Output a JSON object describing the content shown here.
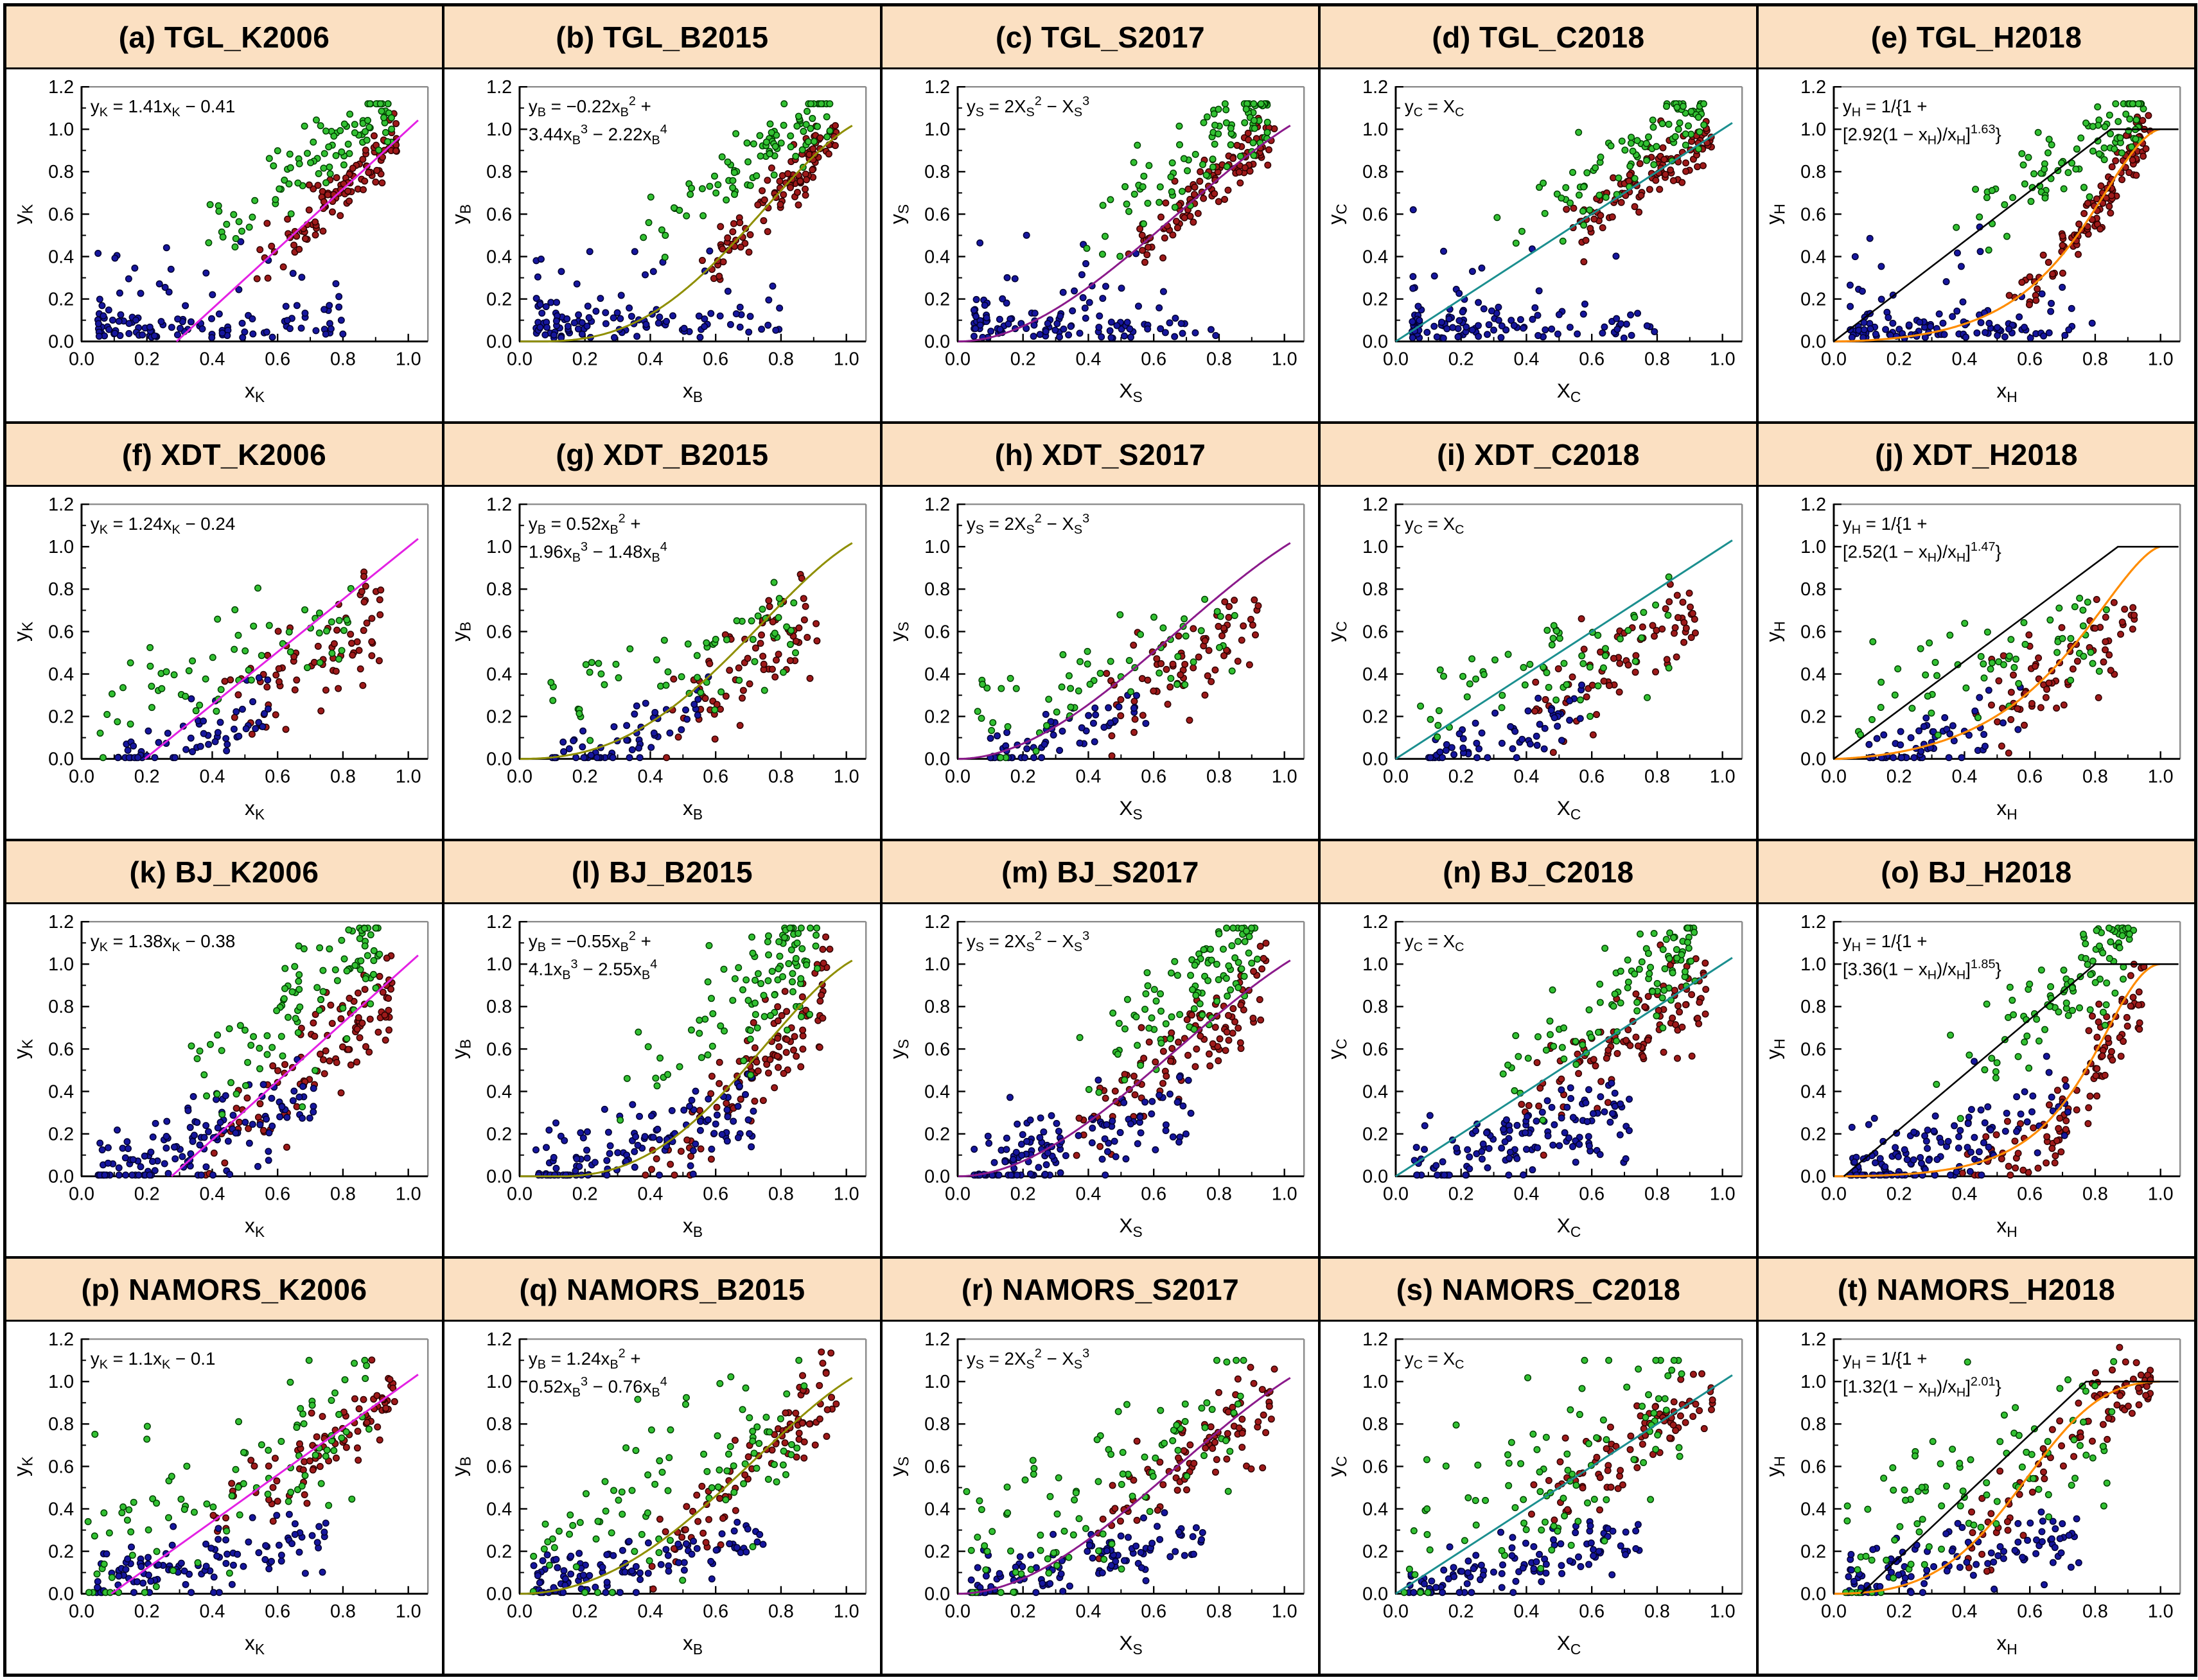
{
  "figure": {
    "header_bg": "#FBE0C2",
    "border_color": "#000000",
    "frame_gray": "#8C8C8C",
    "sites": [
      "TGL",
      "XDT",
      "BJ",
      "NAMORS"
    ],
    "models": [
      "K2006",
      "B2015",
      "S2017",
      "C2018",
      "H2018"
    ]
  },
  "chart_data": {
    "type": "scatter",
    "grid": {
      "rows": 4,
      "cols": 5
    },
    "axes": {
      "xlim": [
        0.0,
        1.0
      ],
      "ylim": [
        0.0,
        1.2
      ],
      "xticks": [
        0.0,
        0.2,
        0.4,
        0.6,
        0.8,
        1.0
      ],
      "yticks": [
        0.0,
        0.2,
        0.4,
        0.6,
        0.8,
        1.0,
        1.2
      ],
      "minor_step": 0.1,
      "grid_lines": false
    },
    "series_colors": {
      "blue": {
        "fill": "#16169E",
        "edge": "#000030"
      },
      "red": {
        "fill": "#9E1A1A",
        "edge": "#2E0000"
      },
      "green": {
        "fill": "#33C133",
        "edge": "#004000"
      }
    },
    "row_scatter": [
      {
        "site": "TGL",
        "series": [
          {
            "name": "red",
            "n": 110,
            "x": [
              0.52,
              0.97,
              0.65
            ],
            "y": {
              "mode": "curve",
              "a": 1.0,
              "b": 0.0,
              "noise": 0.065
            }
          },
          {
            "name": "blue",
            "n": 120,
            "x": [
              0.05,
              0.8,
              1.7
            ],
            "y": {
              "mode": "band",
              "a": 0.0,
              "b": 0.015,
              "noise": 0.075,
              "pout": 0.18,
              "outmax": 0.42
            }
          },
          {
            "name": "green",
            "n": 95,
            "x": [
              0.28,
              0.95,
              0.45
            ],
            "y": {
              "mode": "line",
              "a": 1.05,
              "b": 0.12,
              "noise": 0.1,
              "clampMax": 1.12
            }
          }
        ]
      },
      {
        "site": "XDT",
        "series": [
          {
            "name": "red",
            "n": 75,
            "x": [
              0.42,
              0.92,
              0.8
            ],
            "y": {
              "mode": "line",
              "a": 0.9,
              "b": -0.18,
              "noise": 0.11
            }
          },
          {
            "name": "blue",
            "n": 60,
            "x": [
              0.1,
              0.58,
              1.1
            ],
            "y": {
              "mode": "line",
              "a": 0.5,
              "b": -0.06,
              "noise": 0.07
            }
          },
          {
            "name": "green",
            "n": 60,
            "x": [
              0.05,
              0.85,
              0.9
            ],
            "y": {
              "mode": "line",
              "a": 0.55,
              "b": 0.18,
              "noise": 0.13,
              "clampMax": 1.05
            }
          }
        ]
      },
      {
        "site": "BJ",
        "series": [
          {
            "name": "red",
            "n": 110,
            "x": [
              0.35,
              0.95,
              0.6
            ],
            "y": {
              "mode": "curve",
              "a": 1.0,
              "b": -0.04,
              "noise": 0.11
            }
          },
          {
            "name": "blue",
            "n": 135,
            "x": [
              0.05,
              0.72,
              1.2
            ],
            "y": {
              "mode": "line",
              "a": 0.55,
              "b": -0.05,
              "noise": 0.1
            }
          },
          {
            "name": "green",
            "n": 100,
            "x": [
              0.28,
              0.92,
              0.5
            ],
            "y": {
              "mode": "line",
              "a": 1.15,
              "b": 0.05,
              "noise": 0.13,
              "clampMax": 1.17
            }
          }
        ]
      },
      {
        "site": "NAMORS",
        "series": [
          {
            "name": "red",
            "n": 90,
            "x": [
              0.4,
              0.97,
              0.75
            ],
            "y": {
              "mode": "curve",
              "a": 1.0,
              "b": -0.02,
              "noise": 0.1
            }
          },
          {
            "name": "blue",
            "n": 110,
            "x": [
              0.04,
              0.75,
              1.1
            ],
            "y": {
              "mode": "line",
              "a": 0.32,
              "b": 0.03,
              "noise": 0.07
            }
          },
          {
            "name": "green",
            "n": 95,
            "x": [
              0.02,
              0.88,
              0.95
            ],
            "y": {
              "mode": "line",
              "a": 0.85,
              "b": 0.12,
              "noise": 0.2,
              "clampMax": 1.1
            }
          }
        ]
      }
    ],
    "panels": [
      {
        "letter": "a",
        "title": "(a) TGL_K2006",
        "row": 0,
        "col": 0,
        "seed": 1,
        "xlabel": "x_{K}",
        "ylabel": "y_{K}",
        "eq": [
          "y_{K} = 1.41x_{K} − 0.41"
        ],
        "curves": [
          {
            "type": "linear",
            "a": 1.41,
            "b": -0.41,
            "color": "#E321E3",
            "w": 3
          }
        ]
      },
      {
        "letter": "b",
        "title": "(b) TGL_B2015",
        "row": 0,
        "col": 1,
        "seed": 2,
        "xlabel": "x_{B}",
        "ylabel": "y_{B}",
        "eq": [
          "y_{B} = −0.22x_{B}^{2} +",
          "3.44x_{B}^{3} − 2.22x_{B}^{4}"
        ],
        "curves": [
          {
            "type": "poly",
            "c": [
              -0.22,
              3.44,
              -2.22
            ],
            "color": "#8F8F00",
            "w": 3
          }
        ]
      },
      {
        "letter": "c",
        "title": "(c) TGL_S2017",
        "row": 0,
        "col": 2,
        "seed": 3,
        "xlabel": "X_{S}",
        "ylabel": "y_{S}",
        "eq": [
          "y_{S} = 2X_{S}^{2} − X_{S}^{3}"
        ],
        "curves": [
          {
            "type": "poly",
            "c": [
              2,
              -1,
              0
            ],
            "color": "#8B1A8B",
            "w": 3
          }
        ]
      },
      {
        "letter": "d",
        "title": "(d) TGL_C2018",
        "row": 0,
        "col": 3,
        "seed": 4,
        "xlabel": "X_{C}",
        "ylabel": "y_{C}",
        "eq": [
          "y_{C} = X_{C}"
        ],
        "curves": [
          {
            "type": "linear",
            "a": 1,
            "b": 0,
            "color": "#1B8F8F",
            "w": 3
          }
        ]
      },
      {
        "letter": "e",
        "title": "(e) TGL_H2018",
        "row": 0,
        "col": 4,
        "seed": 5,
        "xlabel": "x_{H}",
        "ylabel": "y_{H}",
        "eq": [
          "y_{H} = 1/{1 +",
          "[2.92(1 − x_{H})/x_{H}]^{1.63}}"
        ],
        "curves": [
          {
            "type": "hill",
            "A": 2.92,
            "p": 1.63,
            "color": "#FF8C00",
            "w": 3.2
          },
          {
            "type": "capline",
            "a": 1.18,
            "b": 0,
            "cap": 1,
            "color": "#000000",
            "w": 2.6
          }
        ]
      },
      {
        "letter": "f",
        "title": "(f) XDT_K2006",
        "row": 1,
        "col": 0,
        "seed": 6,
        "xlabel": "x_{K}",
        "ylabel": "y_{K}",
        "eq": [
          "y_{K} = 1.24x_{K} − 0.24"
        ],
        "curves": [
          {
            "type": "linear",
            "a": 1.24,
            "b": -0.24,
            "color": "#E321E3",
            "w": 3
          }
        ]
      },
      {
        "letter": "g",
        "title": "(g) XDT_B2015",
        "row": 1,
        "col": 1,
        "seed": 7,
        "xlabel": "x_{B}",
        "ylabel": "y_{B}",
        "eq": [
          "y_{B} = 0.52x_{B}^{2} +",
          "1.96x_{B}^{3} − 1.48x_{B}^{4}"
        ],
        "curves": [
          {
            "type": "poly",
            "c": [
              0.52,
              1.96,
              -1.48
            ],
            "color": "#8F8F00",
            "w": 3
          }
        ]
      },
      {
        "letter": "h",
        "title": "(h) XDT_S2017",
        "row": 1,
        "col": 2,
        "seed": 8,
        "xlabel": "X_{S}",
        "ylabel": "y_{S}",
        "eq": [
          "y_{S} = 2X_{S}^{2} − X_{S}^{3}"
        ],
        "curves": [
          {
            "type": "poly",
            "c": [
              2,
              -1,
              0
            ],
            "color": "#8B1A8B",
            "w": 3
          }
        ]
      },
      {
        "letter": "i",
        "title": "(i) XDT_C2018",
        "row": 1,
        "col": 3,
        "seed": 9,
        "xlabel": "X_{C}",
        "ylabel": "y_{C}",
        "eq": [
          "y_{C} = X_{C}"
        ],
        "curves": [
          {
            "type": "linear",
            "a": 1,
            "b": 0,
            "color": "#1B8F8F",
            "w": 3
          }
        ]
      },
      {
        "letter": "j",
        "title": "(j) XDT_H2018",
        "row": 1,
        "col": 4,
        "seed": 10,
        "xlabel": "x_{H}",
        "ylabel": "y_{H}",
        "eq": [
          "y_{H} = 1/{1 +",
          "[2.52(1 − x_{H})/x_{H}]^{1.47}}"
        ],
        "curves": [
          {
            "type": "hill",
            "A": 2.52,
            "p": 1.47,
            "color": "#FF8C00",
            "w": 3.2
          },
          {
            "type": "capline",
            "a": 1.15,
            "b": 0,
            "cap": 1,
            "color": "#000000",
            "w": 2.6
          }
        ]
      },
      {
        "letter": "k",
        "title": "(k) BJ_K2006",
        "row": 2,
        "col": 0,
        "seed": 11,
        "xlabel": "x_{K}",
        "ylabel": "y_{K}",
        "eq": [
          "y_{K} = 1.38x_{K} − 0.38"
        ],
        "curves": [
          {
            "type": "linear",
            "a": 1.38,
            "b": -0.38,
            "color": "#E321E3",
            "w": 3
          }
        ]
      },
      {
        "letter": "l",
        "title": "(l) BJ_B2015",
        "row": 2,
        "col": 1,
        "seed": 12,
        "xlabel": "x_{B}",
        "ylabel": "y_{B}",
        "eq": [
          "y_{B} = −0.55x_{B}^{2} +",
          "4.1x_{B}^{3} − 2.55x_{B}^{4}"
        ],
        "curves": [
          {
            "type": "poly",
            "c": [
              -0.55,
              4.1,
              -2.55
            ],
            "color": "#8F8F00",
            "w": 3
          }
        ]
      },
      {
        "letter": "m",
        "title": "(m) BJ_S2017",
        "row": 2,
        "col": 2,
        "seed": 13,
        "xlabel": "X_{S}",
        "ylabel": "y_{S}",
        "eq": [
          "y_{S} = 2X_{S}^{2} − X_{S}^{3}"
        ],
        "curves": [
          {
            "type": "poly",
            "c": [
              2,
              -1,
              0
            ],
            "color": "#8B1A8B",
            "w": 3
          }
        ]
      },
      {
        "letter": "n",
        "title": "(n) BJ_C2018",
        "row": 2,
        "col": 3,
        "seed": 14,
        "xlabel": "X_{C}",
        "ylabel": "y_{C}",
        "eq": [
          "y_{C} = X_{C}"
        ],
        "curves": [
          {
            "type": "linear",
            "a": 1,
            "b": 0,
            "color": "#1B8F8F",
            "w": 3
          }
        ]
      },
      {
        "letter": "o",
        "title": "(o) BJ_H2018",
        "row": 2,
        "col": 4,
        "seed": 15,
        "xlabel": "x_{H}",
        "ylabel": "y_{H}",
        "eq": [
          "y_{H} = 1/{1 +",
          "[3.36(1 − x_{H})/x_{H}]^{1.85}}"
        ],
        "curves": [
          {
            "type": "hill",
            "A": 3.36,
            "p": 1.85,
            "color": "#FF8C00",
            "w": 3.2
          },
          {
            "type": "capline",
            "a": 1.3,
            "b": -0.04,
            "cap": 1,
            "color": "#000000",
            "w": 2.6
          }
        ]
      },
      {
        "letter": "p",
        "title": "(p) NAMORS_K2006",
        "row": 3,
        "col": 0,
        "seed": 16,
        "xlabel": "x_{K}",
        "ylabel": "y_{K}",
        "eq": [
          "y_{K} = 1.1x_{K} − 0.1"
        ],
        "curves": [
          {
            "type": "linear",
            "a": 1.1,
            "b": -0.1,
            "color": "#E321E3",
            "w": 3
          }
        ]
      },
      {
        "letter": "q",
        "title": "(q) NAMORS_B2015",
        "row": 3,
        "col": 1,
        "seed": 17,
        "xlabel": "x_{B}",
        "ylabel": "y_{B}",
        "eq": [
          "y_{B} = 1.24x_{B}^{2} +",
          "0.52x_{B}^{3} − 0.76x_{B}^{4}"
        ],
        "curves": [
          {
            "type": "poly",
            "c": [
              1.24,
              0.52,
              -0.76
            ],
            "color": "#8F8F00",
            "w": 3
          }
        ]
      },
      {
        "letter": "r",
        "title": "(r) NAMORS_S2017",
        "row": 3,
        "col": 2,
        "seed": 18,
        "xlabel": "X_{S}",
        "ylabel": "y_{S}",
        "eq": [
          "y_{S} = 2X_{S}^{2} − X_{S}^{3}"
        ],
        "curves": [
          {
            "type": "poly",
            "c": [
              2,
              -1,
              0
            ],
            "color": "#8B1A8B",
            "w": 3
          }
        ]
      },
      {
        "letter": "s",
        "title": "(s) NAMORS_C2018",
        "row": 3,
        "col": 3,
        "seed": 19,
        "xlabel": "X_{C}",
        "ylabel": "y_{C}",
        "eq": [
          "y_{C} = X_{C}"
        ],
        "curves": [
          {
            "type": "linear",
            "a": 1,
            "b": 0,
            "color": "#1B8F8F",
            "w": 3
          }
        ]
      },
      {
        "letter": "t",
        "title": "(t) NAMORS_H2018",
        "row": 3,
        "col": 4,
        "seed": 20,
        "xlabel": "x_{H}",
        "ylabel": "y_{H}",
        "eq": [
          "y_{H} = 1/{1 +",
          "[1.32(1 − x_{H})/x_{H}]^{2.01}}"
        ],
        "curves": [
          {
            "type": "hill",
            "A": 1.32,
            "p": 2.01,
            "color": "#FF8C00",
            "w": 3.2
          },
          {
            "type": "capline",
            "a": 1.45,
            "b": -0.12,
            "cap": 1,
            "color": "#000000",
            "w": 2.6
          }
        ]
      }
    ]
  }
}
